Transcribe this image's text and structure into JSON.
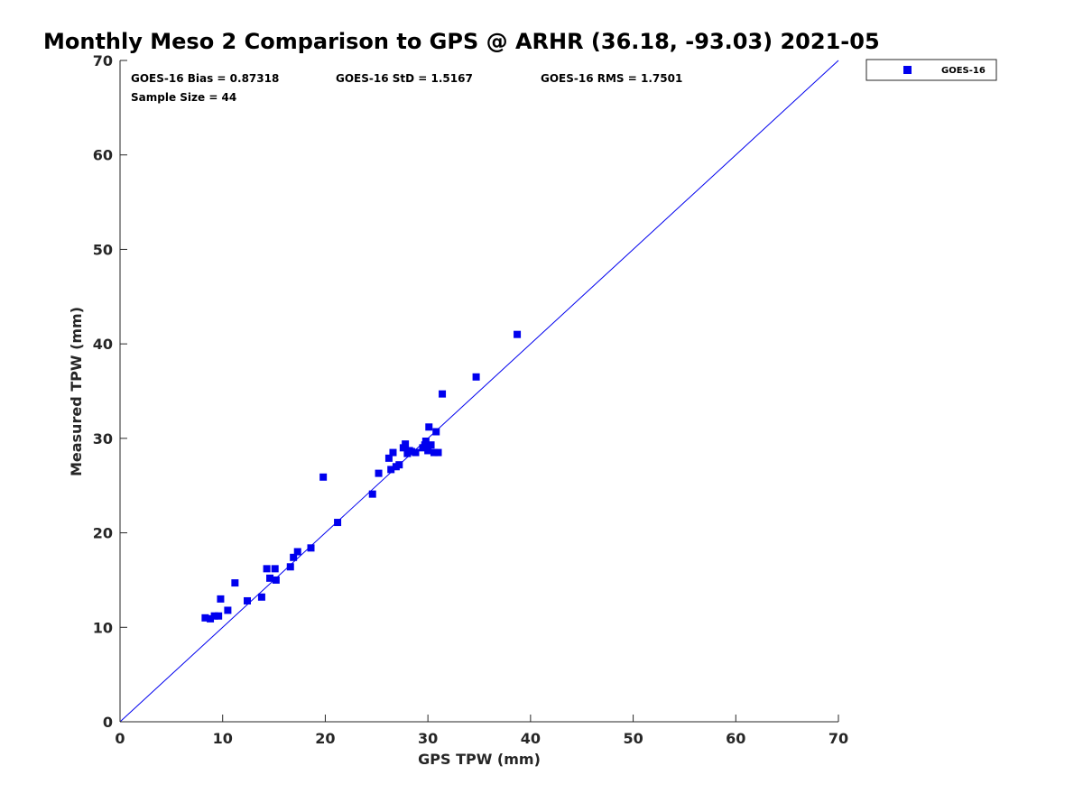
{
  "chart_data": {
    "type": "scatter",
    "title": "Monthly Meso 2 Comparison to GPS @ ARHR (36.18, -93.03) 2021-05",
    "xlabel": "GPS TPW (mm)",
    "ylabel": "Measured TPW (mm)",
    "xlim": [
      0,
      70
    ],
    "ylim": [
      0,
      70
    ],
    "xticks": [
      "0",
      "10",
      "20",
      "30",
      "40",
      "50",
      "60",
      "70"
    ],
    "yticks": [
      "0",
      "10",
      "20",
      "30",
      "40",
      "50",
      "60",
      "70"
    ],
    "grid": false,
    "legend_position": "outside-top-right",
    "reference_line": {
      "from": [
        0,
        0
      ],
      "to": [
        70,
        70
      ],
      "color": "#0000ee"
    },
    "stats": {
      "bias": "GOES-16 Bias = 0.87318",
      "std": "GOES-16 StD = 1.5167",
      "rms": "GOES-16 RMS = 1.7501",
      "sample_size": "Sample Size = 44"
    },
    "series": [
      {
        "name": "GOES-16",
        "color": "#0000ee",
        "marker": "square",
        "points": [
          [
            8.3,
            11.0
          ],
          [
            8.8,
            10.9
          ],
          [
            9.2,
            11.2
          ],
          [
            9.6,
            11.2
          ],
          [
            9.8,
            13.0
          ],
          [
            10.5,
            11.8
          ],
          [
            11.2,
            14.7
          ],
          [
            12.4,
            12.8
          ],
          [
            13.8,
            13.2
          ],
          [
            14.3,
            16.2
          ],
          [
            14.6,
            15.2
          ],
          [
            15.1,
            16.2
          ],
          [
            15.2,
            15.0
          ],
          [
            16.6,
            16.4
          ],
          [
            16.9,
            17.4
          ],
          [
            17.3,
            18.0
          ],
          [
            18.6,
            18.4
          ],
          [
            19.8,
            25.9
          ],
          [
            21.2,
            21.1
          ],
          [
            24.6,
            24.1
          ],
          [
            25.2,
            26.3
          ],
          [
            26.2,
            27.9
          ],
          [
            26.4,
            26.7
          ],
          [
            26.6,
            28.5
          ],
          [
            26.9,
            27.0
          ],
          [
            27.2,
            27.2
          ],
          [
            27.6,
            29.0
          ],
          [
            27.8,
            29.4
          ],
          [
            28.0,
            28.4
          ],
          [
            28.4,
            28.6
          ],
          [
            28.8,
            28.5
          ],
          [
            29.5,
            29.0
          ],
          [
            29.8,
            29.7
          ],
          [
            30.0,
            28.7
          ],
          [
            30.1,
            31.2
          ],
          [
            30.3,
            29.3
          ],
          [
            30.6,
            28.5
          ],
          [
            30.8,
            30.7
          ],
          [
            31.0,
            28.5
          ],
          [
            31.4,
            34.7
          ],
          [
            34.7,
            36.5
          ],
          [
            38.7,
            41.0
          ],
          [
            28.2,
            28.7
          ],
          [
            29.7,
            29.3
          ]
        ]
      }
    ]
  }
}
